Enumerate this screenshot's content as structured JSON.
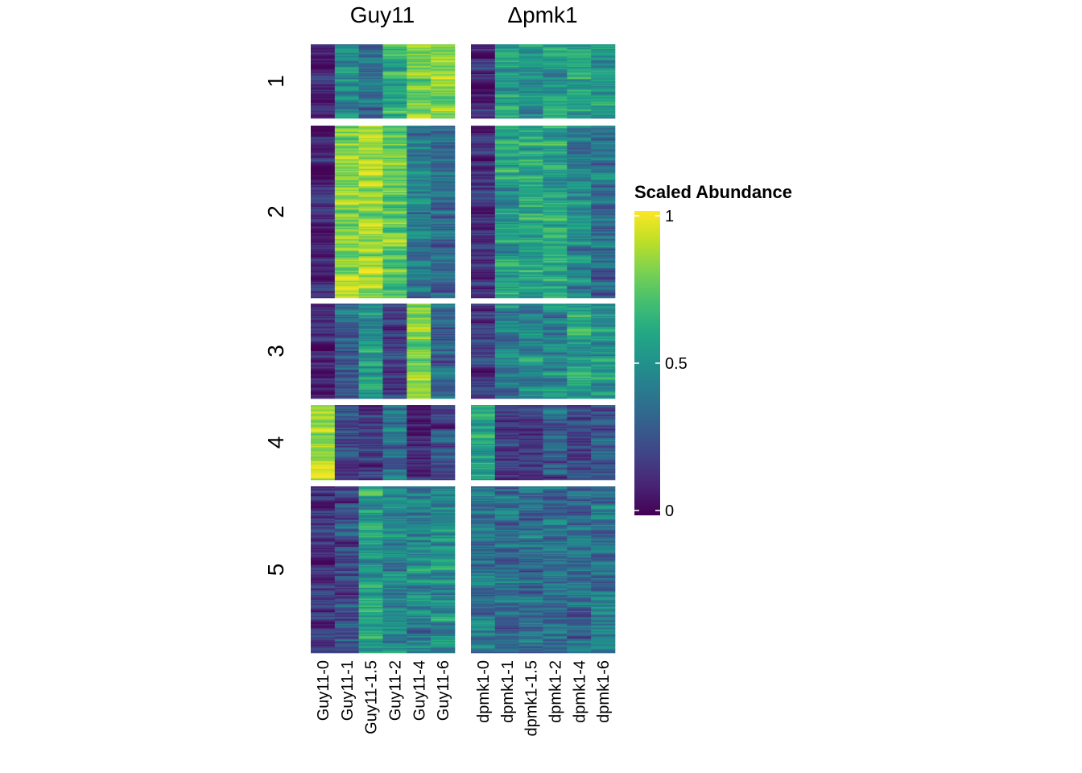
{
  "chart_data": {
    "type": "heatmap",
    "panels": [
      {
        "title": "Guy11",
        "columns": [
          "Guy11-0",
          "Guy11-1",
          "Guy11-1.5",
          "Guy11-2",
          "Guy11-4",
          "Guy11-6"
        ]
      },
      {
        "title": "Δpmk1",
        "columns": [
          "dpmk1-0",
          "dpmk1-1",
          "dpmk1-1.5",
          "dpmk1-2",
          "dpmk1-4",
          "dpmk1-6"
        ]
      }
    ],
    "clusters": [
      {
        "label": "1",
        "rows": 62,
        "profile": [
          [
            0.05,
            0.45,
            0.35,
            0.65,
            0.8,
            0.85
          ],
          [
            0.1,
            0.55,
            0.5,
            0.5,
            0.55,
            0.5
          ]
        ]
      },
      {
        "label": "2",
        "rows": 140,
        "profile": [
          [
            0.05,
            0.85,
            0.9,
            0.75,
            0.4,
            0.35
          ],
          [
            0.1,
            0.55,
            0.6,
            0.6,
            0.45,
            0.35
          ]
        ]
      },
      {
        "label": "3",
        "rows": 78,
        "profile": [
          [
            0.05,
            0.3,
            0.5,
            0.15,
            0.85,
            0.3
          ],
          [
            0.15,
            0.45,
            0.5,
            0.45,
            0.6,
            0.55
          ]
        ]
      },
      {
        "label": "4",
        "rows": 62,
        "profile": [
          [
            0.9,
            0.2,
            0.15,
            0.35,
            0.1,
            0.25
          ],
          [
            0.55,
            0.15,
            0.15,
            0.25,
            0.2,
            0.25
          ]
        ]
      },
      {
        "label": "5",
        "rows": 138,
        "profile": [
          [
            0.1,
            0.25,
            0.55,
            0.45,
            0.45,
            0.5
          ],
          [
            0.4,
            0.35,
            0.35,
            0.35,
            0.35,
            0.4
          ]
        ]
      }
    ],
    "colormap": "viridis",
    "legend": {
      "title": "Scaled Abundance",
      "ticks": [
        {
          "value": 1,
          "label": "1"
        },
        {
          "value": 0.5,
          "label": "0.5"
        },
        {
          "value": 0,
          "label": "0"
        }
      ],
      "placement": "right"
    }
  }
}
